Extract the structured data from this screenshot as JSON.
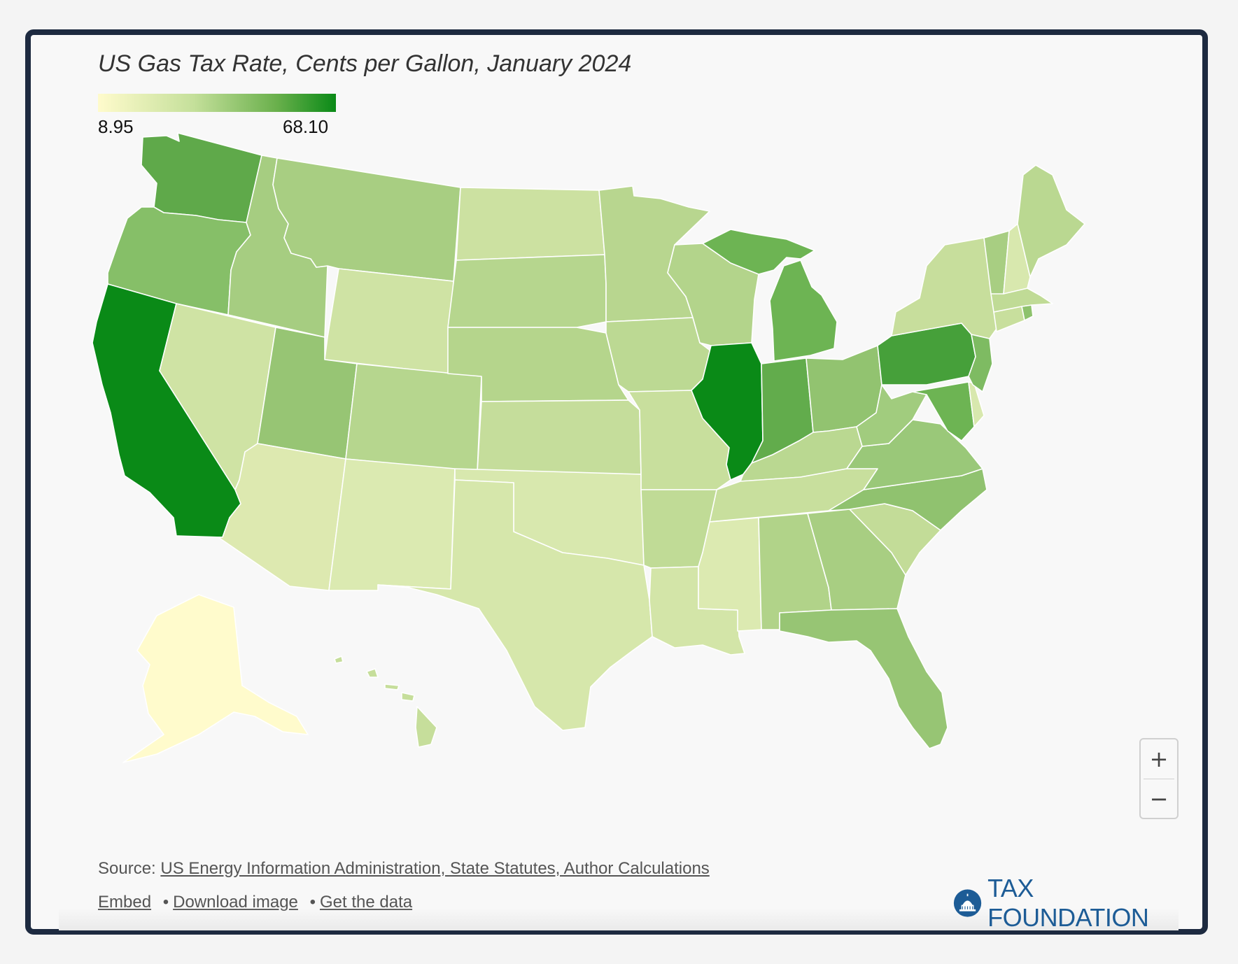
{
  "title": "US Gas Tax Rate, Cents per Gallon, January 2024",
  "legend": {
    "min_label": "8.95",
    "max_label": "68.10",
    "min": 8.95,
    "max": 68.1,
    "color_low": "#fffbcc",
    "color_high": "#0a8a17"
  },
  "chart_data": {
    "type": "choropleth",
    "title": "US Gas Tax Rate, Cents per Gallon, January 2024",
    "color_scale": {
      "min": 8.95,
      "max": 68.1
    },
    "regions": [
      {
        "id": "CA",
        "color": "#0a8a17"
      },
      {
        "id": "IL",
        "color": "#0a8a17"
      },
      {
        "id": "WA",
        "color": "#5fa94a"
      },
      {
        "id": "PA",
        "color": "#46a03a"
      },
      {
        "id": "IN",
        "color": "#62ac4c"
      },
      {
        "id": "MI",
        "color": "#6db453"
      },
      {
        "id": "MD",
        "color": "#6db453"
      },
      {
        "id": "OR",
        "color": "#86bf68"
      },
      {
        "id": "NJ",
        "color": "#7ebb62"
      },
      {
        "id": "UT",
        "color": "#97c574"
      },
      {
        "id": "FL",
        "color": "#97c574"
      },
      {
        "id": "NC",
        "color": "#90c26f"
      },
      {
        "id": "OH",
        "color": "#92c370"
      },
      {
        "id": "VA",
        "color": "#9ac879"
      },
      {
        "id": "WV",
        "color": "#a1cc7e"
      },
      {
        "id": "ID",
        "color": "#a6cd81"
      },
      {
        "id": "MT",
        "color": "#a8ce82"
      },
      {
        "id": "VT",
        "color": "#a8ce82"
      },
      {
        "id": "RI",
        "color": "#8ec26d"
      },
      {
        "id": "GA",
        "color": "#a8ce82"
      },
      {
        "id": "AL",
        "color": "#b1d389"
      },
      {
        "id": "WI",
        "color": "#b3d48b"
      },
      {
        "id": "NE",
        "color": "#b5d58c"
      },
      {
        "id": "CO",
        "color": "#b6d68e"
      },
      {
        "id": "SD",
        "color": "#b6d68e"
      },
      {
        "id": "MN",
        "color": "#b8d68f"
      },
      {
        "id": "KY",
        "color": "#bad891"
      },
      {
        "id": "ME",
        "color": "#bad891"
      },
      {
        "id": "IA",
        "color": "#bcd993"
      },
      {
        "id": "MA",
        "color": "#c0db96"
      },
      {
        "id": "SC",
        "color": "#c3dc98"
      },
      {
        "id": "KS",
        "color": "#c5dd9b"
      },
      {
        "id": "NY",
        "color": "#c7de9c"
      },
      {
        "id": "MO",
        "color": "#c8df9d"
      },
      {
        "id": "CT",
        "color": "#c8df9d"
      },
      {
        "id": "ND",
        "color": "#cce1a1"
      },
      {
        "id": "NV",
        "color": "#cfe3a4"
      },
      {
        "id": "WY",
        "color": "#cfe3a4"
      },
      {
        "id": "TN",
        "color": "#c8df9d"
      },
      {
        "id": "AR",
        "color": "#c0db96"
      },
      {
        "id": "OK",
        "color": "#d8e8ae"
      },
      {
        "id": "TX",
        "color": "#d6e7ab"
      },
      {
        "id": "LA",
        "color": "#d3e5a8"
      },
      {
        "id": "NH",
        "color": "#d8e8ae"
      },
      {
        "id": "HI",
        "color": "#c6de9b"
      },
      {
        "id": "DE",
        "color": "#d8e8ae"
      },
      {
        "id": "NM",
        "color": "#dbeab1"
      },
      {
        "id": "AZ",
        "color": "#dde9b0"
      },
      {
        "id": "MS",
        "color": "#dceab1"
      },
      {
        "id": "AK",
        "color": "#fffbcc"
      }
    ]
  },
  "zoom": {
    "in_label": "+",
    "out_label": "−"
  },
  "source": {
    "prefix": "Source: ",
    "link": "US Energy Information Administration, State Statutes, Author Calculations"
  },
  "links": {
    "embed": "Embed",
    "download": "Download image",
    "data": "Get the data",
    "sep": "•"
  },
  "logo": {
    "text": "TAX FOUNDATION",
    "icon": "capitol-dome-icon"
  }
}
